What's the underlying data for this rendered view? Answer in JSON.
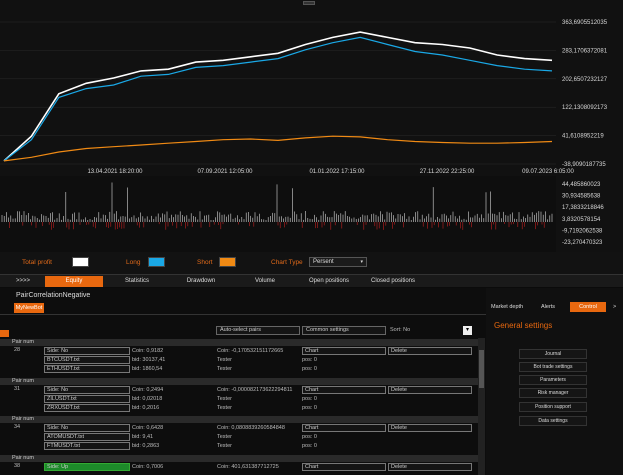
{
  "chart": {
    "y_ticks": [
      "363,6905512035",
      "283,1706372081",
      "202,6507232127",
      "122,1308092173",
      "41,6108952219",
      "-38,9090187735"
    ],
    "x_ticks": [
      "13.04.2021 18:20:00",
      "07.09.2021 12:05:00",
      "01.01.2022 17:15:00",
      "27.11.2022 22:25:00",
      "09.07.2023 6:05:00"
    ],
    "volume_ticks": [
      "44,485860023",
      "30,934585638",
      "17,3833218846",
      "3,8320578154",
      "-9,7192062538",
      "-23,270470323"
    ]
  },
  "chart_data": {
    "type": "line",
    "x": [
      0,
      5,
      10,
      15,
      20,
      25,
      30,
      35,
      40,
      45,
      50,
      55,
      60,
      65,
      70,
      75,
      80,
      85,
      90,
      95,
      100
    ],
    "series": [
      {
        "values": [
          -30,
          40,
          160,
          190,
          205,
          225,
          230,
          250,
          255,
          265,
          275,
          300,
          320,
          335,
          320,
          305,
          300,
          290,
          270,
          260,
          255
        ]
      },
      {
        "values": [
          -30,
          30,
          150,
          175,
          185,
          210,
          215,
          235,
          240,
          250,
          260,
          285,
          305,
          320,
          300,
          280,
          270,
          255,
          240,
          230,
          225
        ]
      },
      {
        "values": [
          -30,
          -20,
          -5,
          5,
          10,
          15,
          20,
          25,
          30,
          32,
          28,
          35,
          40,
          38,
          30,
          25,
          22,
          20,
          20,
          22,
          25
        ]
      }
    ],
    "ylim": [
      -38.9090187735,
      363.6905512035
    ]
  },
  "legend": {
    "total_profit_label": "Total profit",
    "long_label": "Long",
    "short_label": "Short",
    "chart_type_label": "Chart Type",
    "chart_type_value": "Persent",
    "colors": {
      "total": "#ffffff",
      "long": "#1aa8e6",
      "short": "#f08a14"
    }
  },
  "tabs": {
    "more": ">>>>",
    "items": [
      "Equity",
      "Statistics",
      "Drawdown",
      "Volume",
      "Open positions",
      "Closed positions"
    ]
  },
  "panel": {
    "title": "PairCorrelationNegative",
    "bot_tab": "MyNewBot",
    "auto_select": "Auto-select pairs",
    "common_settings": "Common settings",
    "sort_label": "Sort: No",
    "groups": [
      {
        "pair_num_label": "Pair num",
        "num": "28",
        "side": "Side: No",
        "coin": "Coin: 0,9182",
        "corr": "Coin: -0,170532151172665",
        "sec1": "BTCUSDT.txt",
        "bid1": "bid: 30137,41",
        "sec2": "ETHUSDT.txt",
        "bid2": "bid: 1860,54",
        "tester": "Tester",
        "pos": "pos: 0",
        "chart": "Chart",
        "delete": "Delete"
      },
      {
        "pair_num_label": "Pair num",
        "num": "31",
        "side": "Side: No",
        "coin": "Coin: 0,2494",
        "corr": "Coin: -0,000082173622294811",
        "sec1": "ZILUSDT.txt",
        "bid1": "bid: 0,02018",
        "sec2": "ZRXUSDT.txt",
        "bid2": "bid: 0,2016",
        "tester": "Tester",
        "pos": "pos: 0",
        "chart": "Chart",
        "delete": "Delete"
      },
      {
        "pair_num_label": "Pair num",
        "num": "34",
        "side": "Side: No",
        "coin": "Coin: 0,6428",
        "corr": "Coin: 0,0808839260584848",
        "sec1": "ATOMUSDT.txt",
        "bid1": "bid: 9,41",
        "sec2": "FTMUSDT.txt",
        "bid2": "bid: 0,2863",
        "tester": "Tester",
        "pos": "pos: 0",
        "chart": "Chart",
        "delete": "Delete"
      },
      {
        "pair_num_label": "Pair num",
        "num": "38",
        "side": "Side: Up",
        "coin": "Coin: 0,7006",
        "corr": "Coin: 401,631387712725",
        "tester": "Tester",
        "pos": "pos: 0",
        "chart": "Chart",
        "delete": "Delete"
      }
    ]
  },
  "right_panel": {
    "market_depth": "Market depth",
    "alerts": "Alerts",
    "control": "Control",
    "arrow": ">",
    "title": "General settings",
    "menu": [
      "Journal",
      "Bot trade settings",
      "Parameters",
      "Risk manager",
      "Position support",
      "Data settings"
    ]
  }
}
